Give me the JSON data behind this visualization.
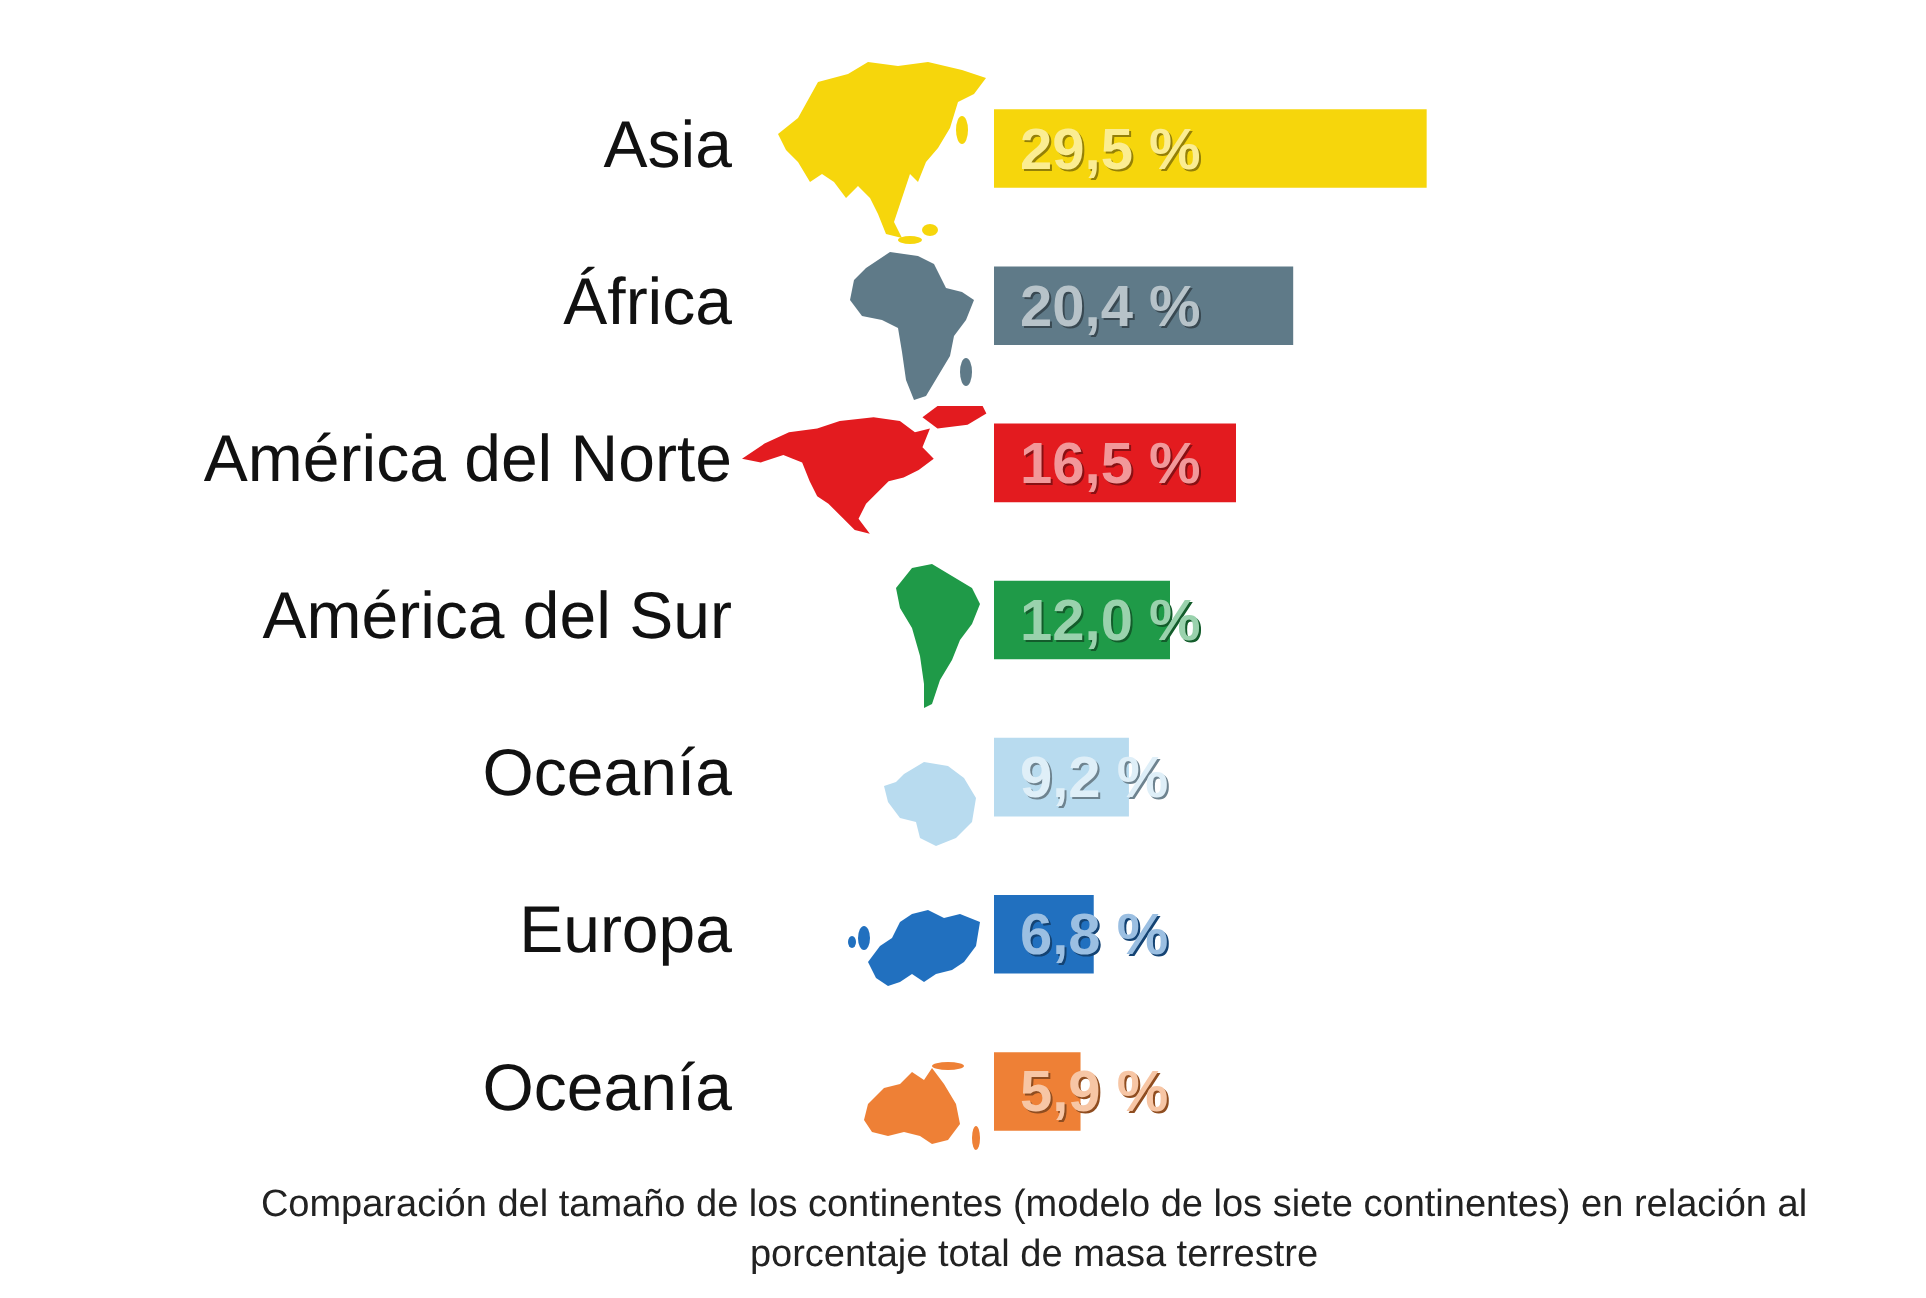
{
  "chart_data": {
    "type": "bar",
    "orientation": "horizontal",
    "categories": [
      "Asia",
      "África",
      "América del Norte",
      "América del Sur",
      "Oceanía",
      "Europa",
      "Oceanía"
    ],
    "values": [
      29.5,
      20.4,
      16.5,
      12.0,
      9.2,
      6.8,
      5.9
    ],
    "colors": [
      "#f6d60c",
      "#5f7a88",
      "#e31b1f",
      "#1f9a48",
      "#b8dbef",
      "#2170bf",
      "#ee8036"
    ],
    "value_labels": [
      "29,5 %",
      "20,4 %",
      "16,5 %",
      "12,0 %",
      "9,2 %",
      "6,8 %",
      "5,9 %"
    ],
    "tick_labels": "y",
    "grid": false,
    "legend": false,
    "annotations": [
      "Comparación del tamaño de los continentes (modelo de los siete continentes) en relación al porcentaje total de masa terrestre"
    ]
  }
}
